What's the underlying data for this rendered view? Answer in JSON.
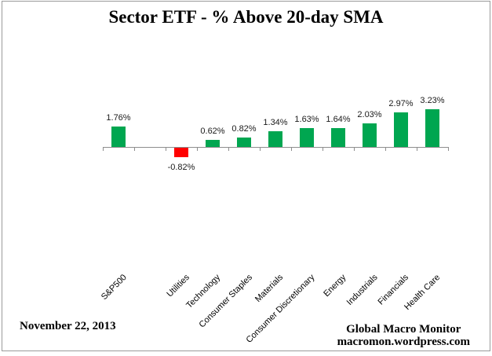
{
  "title": "Sector ETF - % Above 20-day SMA",
  "footer": {
    "date": "November 22, 2013",
    "brand_line1": "Global Macro Monitor",
    "brand_line2": "macromon.wordpress.com"
  },
  "colors": {
    "positive_bar": "#00A650",
    "negative_bar": "#FF0000",
    "axis": "#8E8E8E",
    "frame_border": "#9A9A9A",
    "label_text": "#1A1A1A"
  },
  "chart_data": {
    "type": "bar",
    "title": "Sector ETF - % Above 20-day SMA",
    "xlabel": "",
    "ylabel": "",
    "categories": [
      "S&P500",
      "Utilities",
      "Technology",
      "Consumer Staples",
      "Materials",
      "Consumer Discretionary",
      "Energy",
      "Industrials",
      "Financials",
      "Health Care"
    ],
    "values": [
      1.76,
      -0.82,
      0.62,
      0.82,
      1.34,
      1.63,
      1.64,
      2.03,
      2.97,
      3.23
    ],
    "labels": [
      "1.76%",
      "-0.82%",
      "0.62%",
      "0.82%",
      "1.34%",
      "1.63%",
      "1.64%",
      "2.03%",
      "2.97%",
      "3.23%"
    ],
    "bar_colors_rule": "positive=green, negative=red",
    "spacer_after_first_category": true,
    "data_labels": "on",
    "gridlines": "off",
    "legend": "none",
    "category_label_rotation_deg": 45
  }
}
